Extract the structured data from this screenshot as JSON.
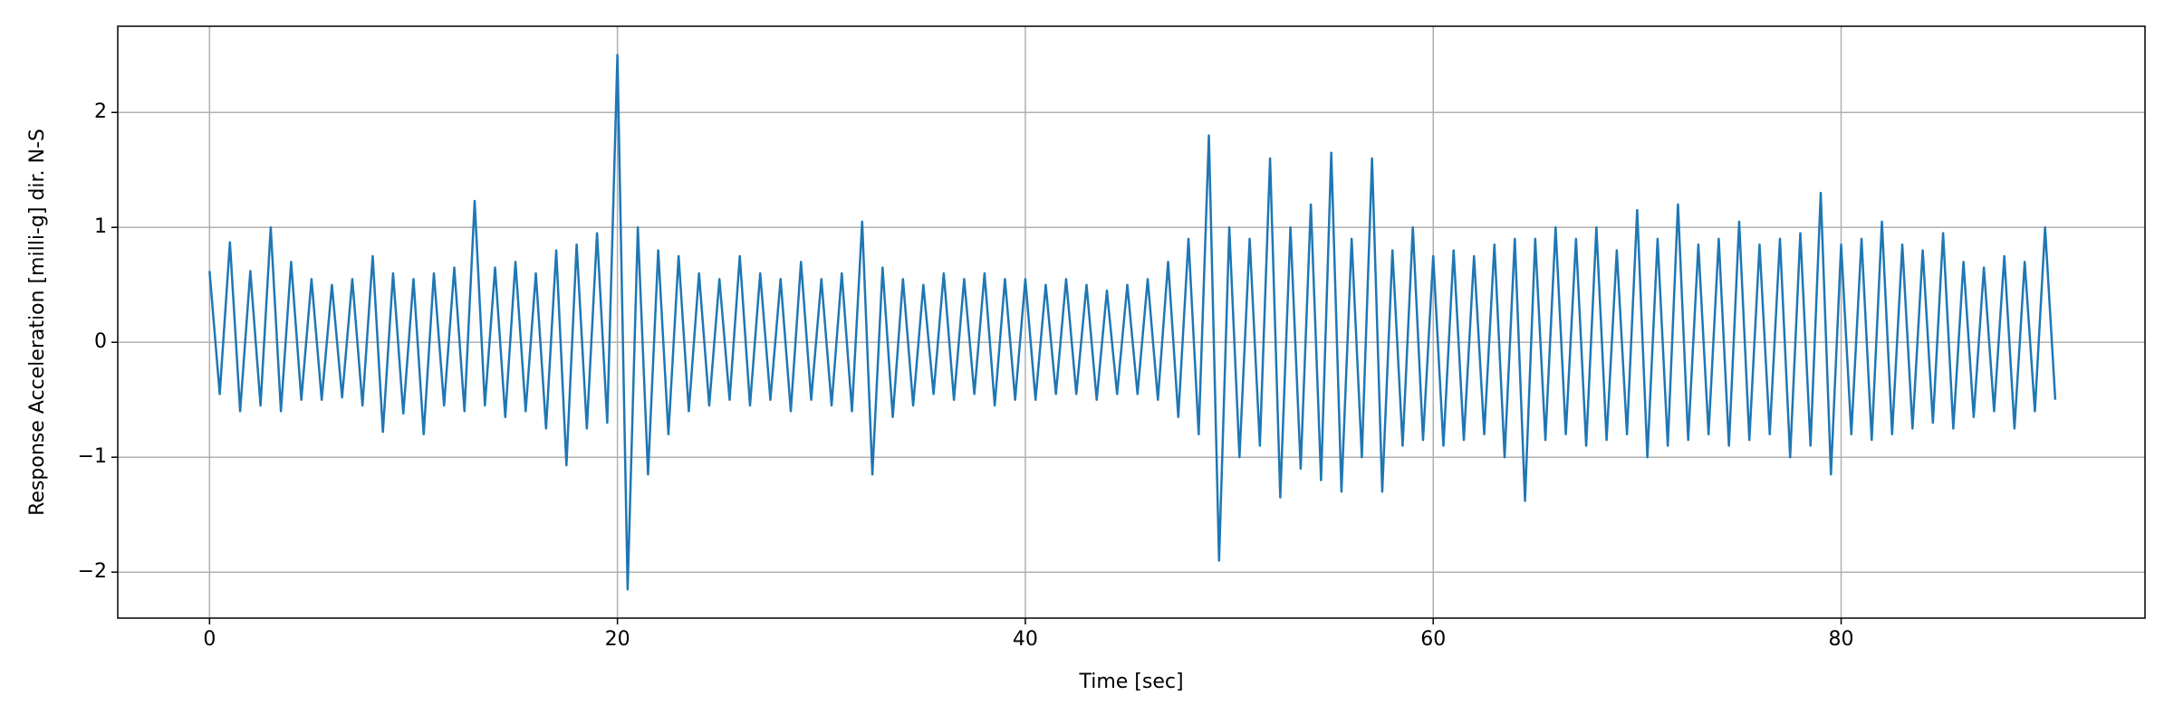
{
  "chart_data": {
    "type": "line",
    "xlabel": "Time [sec]",
    "ylabel": "Response Acceleration [milli-g] dir. N-S",
    "color": "#1f77b4",
    "grid": true,
    "xlim": [
      -4.5,
      94.9
    ],
    "ylim": [
      -2.4,
      2.75
    ],
    "xticks": [
      0,
      20,
      40,
      60,
      80
    ],
    "yticks": [
      {
        "value": -2,
        "label": "−2"
      },
      {
        "value": -1,
        "label": "−1"
      },
      0,
      1,
      2
    ],
    "x": [
      0,
      0.5,
      1,
      1.5,
      2,
      2.5,
      3,
      3.5,
      4,
      4.5,
      5,
      5.5,
      6,
      6.5,
      7,
      7.5,
      8,
      8.5,
      9,
      9.5,
      10,
      10.5,
      11,
      11.5,
      12,
      12.5,
      13,
      13.5,
      14,
      14.5,
      15,
      15.5,
      16,
      16.5,
      17,
      17.5,
      18,
      18.5,
      19,
      19.5,
      20,
      20.5,
      21,
      21.5,
      22,
      22.5,
      23,
      23.5,
      24,
      24.5,
      25,
      25.5,
      26,
      26.5,
      27,
      27.5,
      28,
      28.5,
      29,
      29.5,
      30,
      30.5,
      31,
      31.5,
      32,
      32.5,
      33,
      33.5,
      34,
      34.5,
      35,
      35.5,
      36,
      36.5,
      37,
      37.5,
      38,
      38.5,
      39,
      39.5,
      40,
      40.5,
      41,
      41.5,
      42,
      42.5,
      43,
      43.5,
      44,
      44.5,
      45,
      45.5,
      46,
      46.5,
      47,
      47.5,
      48,
      48.5,
      49,
      49.5,
      50,
      50.5,
      51,
      51.5,
      52,
      52.5,
      53,
      53.5,
      54,
      54.5,
      55,
      55.5,
      56,
      56.5,
      57,
      57.5,
      58,
      58.5,
      59,
      59.5,
      60,
      60.5,
      61,
      61.5,
      62,
      62.5,
      63,
      63.5,
      64,
      64.5,
      65,
      65.5,
      66,
      66.5,
      67,
      67.5,
      68,
      68.5,
      69,
      69.5,
      70,
      70.5,
      71,
      71.5,
      72,
      72.5,
      73,
      73.5,
      74,
      74.5,
      75,
      75.5,
      76,
      76.5,
      77,
      77.5,
      78,
      78.5,
      79,
      79.5,
      80,
      80.5,
      81,
      81.5,
      82,
      82.5,
      83,
      83.5,
      84,
      84.5,
      85,
      85.5,
      86,
      86.5,
      87,
      87.5,
      88,
      88.5,
      89,
      89.5,
      90,
      90.5
    ],
    "values": [
      0.62,
      -0.45,
      0.87,
      -0.6,
      0.62,
      -0.55,
      1.0,
      -0.6,
      0.7,
      -0.5,
      0.55,
      -0.5,
      0.5,
      -0.48,
      0.55,
      -0.55,
      0.75,
      -0.78,
      0.6,
      -0.62,
      0.55,
      -0.8,
      0.6,
      -0.55,
      0.65,
      -0.6,
      1.23,
      -0.55,
      0.65,
      -0.65,
      0.7,
      -0.6,
      0.6,
      -0.75,
      0.8,
      -1.07,
      0.85,
      -0.75,
      0.95,
      -0.7,
      2.5,
      -2.15,
      1.0,
      -1.15,
      0.8,
      -0.8,
      0.75,
      -0.6,
      0.6,
      -0.55,
      0.55,
      -0.5,
      0.75,
      -0.55,
      0.6,
      -0.5,
      0.55,
      -0.6,
      0.7,
      -0.5,
      0.55,
      -0.55,
      0.6,
      -0.6,
      1.05,
      -1.15,
      0.65,
      -0.65,
      0.55,
      -0.55,
      0.5,
      -0.45,
      0.6,
      -0.5,
      0.55,
      -0.45,
      0.6,
      -0.55,
      0.55,
      -0.5,
      0.55,
      -0.5,
      0.5,
      -0.45,
      0.55,
      -0.45,
      0.5,
      -0.5,
      0.45,
      -0.45,
      0.5,
      -0.45,
      0.55,
      -0.5,
      0.7,
      -0.65,
      0.9,
      -0.8,
      1.8,
      -1.9,
      1.0,
      -1.0,
      0.9,
      -0.9,
      1.6,
      -1.35,
      1.0,
      -1.1,
      1.2,
      -1.2,
      1.65,
      -1.3,
      0.9,
      -1.0,
      1.6,
      -1.3,
      0.8,
      -0.9,
      1.0,
      -0.85,
      0.75,
      -0.9,
      0.8,
      -0.85,
      0.75,
      -0.8,
      0.85,
      -1.0,
      0.9,
      -1.38,
      0.9,
      -0.85,
      1.0,
      -0.8,
      0.9,
      -0.9,
      1.0,
      -0.85,
      0.8,
      -0.8,
      1.15,
      -1.0,
      0.9,
      -0.9,
      1.2,
      -0.85,
      0.85,
      -0.8,
      0.9,
      -0.9,
      1.05,
      -0.85,
      0.85,
      -0.8,
      0.9,
      -1.0,
      0.95,
      -0.9,
      1.3,
      -1.15,
      0.85,
      -0.8,
      0.9,
      -0.85,
      1.05,
      -0.8,
      0.85,
      -0.75,
      0.8,
      -0.7,
      0.95,
      -0.75,
      0.7,
      -0.65,
      0.65,
      -0.6,
      0.75,
      -0.75,
      0.7,
      -0.6,
      1.0,
      -0.5
    ]
  }
}
